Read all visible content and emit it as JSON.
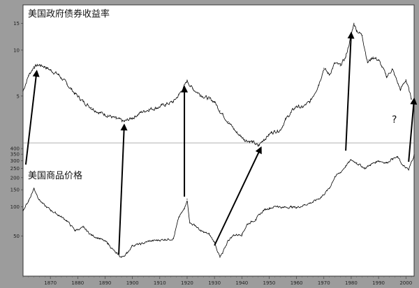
{
  "chart_data": {
    "type": "line",
    "title": "",
    "xlabel": "",
    "ylabel": "",
    "grid": false,
    "x_range": [
      1860,
      2003
    ],
    "x_ticks": [
      1870,
      1880,
      1890,
      1900,
      1910,
      1920,
      1930,
      1940,
      1950,
      1960,
      1970,
      1980,
      1990,
      2000
    ],
    "annotation": "?",
    "panels": [
      {
        "name": "top",
        "series_label": "美国政府债券收益率",
        "yscale": "log",
        "ylim": [
          2.6,
          18
        ],
        "y_ticks": [
          5,
          10,
          15
        ],
        "points": [
          [
            1860,
            5.4
          ],
          [
            1862,
            6.8
          ],
          [
            1864,
            7.8
          ],
          [
            1866,
            8.0
          ],
          [
            1868,
            7.8
          ],
          [
            1870,
            7.4
          ],
          [
            1873,
            6.9
          ],
          [
            1876,
            6.0
          ],
          [
            1879,
            5.2
          ],
          [
            1882,
            4.6
          ],
          [
            1885,
            4.2
          ],
          [
            1888,
            3.9
          ],
          [
            1891,
            3.75
          ],
          [
            1894,
            3.55
          ],
          [
            1897,
            3.4
          ],
          [
            1900,
            3.6
          ],
          [
            1903,
            3.9
          ],
          [
            1906,
            4.1
          ],
          [
            1909,
            4.2
          ],
          [
            1912,
            4.4
          ],
          [
            1915,
            4.6
          ],
          [
            1917,
            5.1
          ],
          [
            1919,
            5.8
          ],
          [
            1920,
            6.3
          ],
          [
            1922,
            5.6
          ],
          [
            1925,
            5.1
          ],
          [
            1928,
            4.8
          ],
          [
            1930,
            4.6
          ],
          [
            1932,
            4.0
          ],
          [
            1935,
            3.4
          ],
          [
            1938,
            2.9
          ],
          [
            1941,
            2.6
          ],
          [
            1944,
            2.5
          ],
          [
            1946,
            2.35
          ],
          [
            1948,
            2.6
          ],
          [
            1951,
            2.9
          ],
          [
            1954,
            3.0
          ],
          [
            1956,
            3.5
          ],
          [
            1958,
            3.9
          ],
          [
            1960,
            4.3
          ],
          [
            1962,
            4.2
          ],
          [
            1965,
            4.6
          ],
          [
            1968,
            5.9
          ],
          [
            1970,
            7.6
          ],
          [
            1972,
            6.9
          ],
          [
            1974,
            8.2
          ],
          [
            1976,
            7.9
          ],
          [
            1978,
            9.0
          ],
          [
            1980,
            12.5
          ],
          [
            1981,
            15.0
          ],
          [
            1982,
            13.5
          ],
          [
            1984,
            12.5
          ],
          [
            1986,
            8.3
          ],
          [
            1988,
            9.0
          ],
          [
            1990,
            8.6
          ],
          [
            1993,
            6.7
          ],
          [
            1995,
            7.5
          ],
          [
            1998,
            5.5
          ],
          [
            2000,
            6.4
          ],
          [
            2002,
            4.8
          ]
        ]
      },
      {
        "name": "bottom",
        "series_label": "美国商品价格",
        "yscale": "log",
        "ylim": [
          25,
          450
        ],
        "y_ticks": [
          50,
          100,
          150,
          200,
          250,
          300,
          350,
          400
        ],
        "points": [
          [
            1860,
            92
          ],
          [
            1862,
            115
          ],
          [
            1864,
            155
          ],
          [
            1866,
            118
          ],
          [
            1868,
            102
          ],
          [
            1870,
            93
          ],
          [
            1873,
            82
          ],
          [
            1876,
            72
          ],
          [
            1879,
            57
          ],
          [
            1882,
            61
          ],
          [
            1885,
            51
          ],
          [
            1888,
            47
          ],
          [
            1891,
            42
          ],
          [
            1894,
            33
          ],
          [
            1896,
            30
          ],
          [
            1898,
            33
          ],
          [
            1900,
            40
          ],
          [
            1903,
            41
          ],
          [
            1906,
            44
          ],
          [
            1909,
            45
          ],
          [
            1912,
            46
          ],
          [
            1915,
            47
          ],
          [
            1917,
            78
          ],
          [
            1919,
            95
          ],
          [
            1920,
            120
          ],
          [
            1921,
            68
          ],
          [
            1923,
            64
          ],
          [
            1925,
            56
          ],
          [
            1928,
            52
          ],
          [
            1930,
            43
          ],
          [
            1932,
            30
          ],
          [
            1933,
            33
          ],
          [
            1935,
            45
          ],
          [
            1937,
            51
          ],
          [
            1940,
            52
          ],
          [
            1942,
            66
          ],
          [
            1945,
            74
          ],
          [
            1948,
            92
          ],
          [
            1950,
            97
          ],
          [
            1953,
            102
          ],
          [
            1955,
            98
          ],
          [
            1958,
            100
          ],
          [
            1960,
            98
          ],
          [
            1963,
            105
          ],
          [
            1966,
            112
          ],
          [
            1969,
            126
          ],
          [
            1972,
            155
          ],
          [
            1974,
            205
          ],
          [
            1976,
            225
          ],
          [
            1978,
            265
          ],
          [
            1980,
            305
          ],
          [
            1982,
            285
          ],
          [
            1985,
            250
          ],
          [
            1987,
            272
          ],
          [
            1990,
            300
          ],
          [
            1993,
            285
          ],
          [
            1995,
            315
          ],
          [
            1997,
            325
          ],
          [
            1999,
            265
          ],
          [
            2001,
            240
          ],
          [
            2003,
            345
          ]
        ]
      }
    ]
  }
}
